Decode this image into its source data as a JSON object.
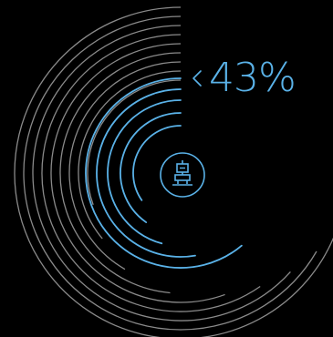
{
  "progress": {
    "percent_text": "43%",
    "value": 0.43
  },
  "icons": {
    "indicator": "chevron-left-icon",
    "center": "robot-icon"
  },
  "colors": {
    "background": "#000000",
    "accent": "#5ab2e8",
    "track": "#8a8a8a"
  },
  "rings": {
    "active_count": 5,
    "inactive_count": 9
  }
}
